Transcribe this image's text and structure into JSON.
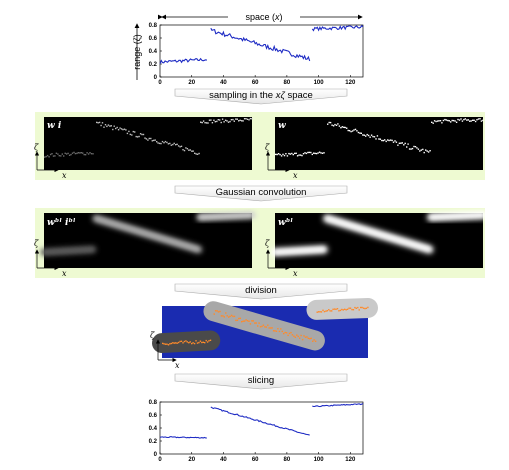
{
  "colors": {
    "panel_bg": "#eefad2",
    "line": "#1f2cc4",
    "division_bg": "#1a2bb0",
    "division_dots": "#ff8a2a"
  },
  "top_axis": {
    "label": "space (",
    "var": "x",
    "close": ")"
  },
  "steps": {
    "sampling": "sampling in the xζ space",
    "convolution": "Gaussian convolution",
    "division": "division",
    "slicing": "slicing"
  },
  "panels": {
    "wi": {
      "label": "w i"
    },
    "w": {
      "label": "w"
    },
    "wbi": {
      "label": "wᵇˡ iᵇˡ"
    },
    "wb": {
      "label": "wᵇˡ"
    }
  },
  "axis_labels": {
    "zeta": "ζ",
    "x": "x"
  },
  "chart_data": [
    {
      "type": "line",
      "ylabel": "range (ζ)",
      "xlim": [
        0,
        128
      ],
      "ylim": [
        0,
        0.8
      ],
      "xticks": [
        0,
        20,
        40,
        60,
        80,
        100,
        120
      ],
      "yticks": [
        0,
        0.2,
        0.4,
        0.6,
        0.8
      ],
      "segments": [
        {
          "x0": 0,
          "x1": 30,
          "y0": 0.23,
          "y1": 0.27,
          "noise": 0.025
        },
        {
          "x0": 32,
          "x1": 95,
          "y0": 0.72,
          "y1": 0.27,
          "noise": 0.035
        },
        {
          "x0": 96,
          "x1": 128,
          "y0": 0.74,
          "y1": 0.77,
          "noise": 0.025
        }
      ]
    },
    {
      "type": "line",
      "xlim": [
        0,
        128
      ],
      "ylim": [
        0,
        0.8
      ],
      "xticks": [
        0,
        20,
        40,
        60,
        80,
        100,
        120
      ],
      "yticks": [
        0,
        0.2,
        0.4,
        0.6,
        0.8
      ],
      "segments": [
        {
          "x0": 0,
          "x1": 30,
          "y0": 0.26,
          "y1": 0.25,
          "noise": 0.008
        },
        {
          "x0": 32,
          "x1": 95,
          "y0": 0.72,
          "y1": 0.28,
          "noise": 0.01
        },
        {
          "x0": 96,
          "x1": 128,
          "y0": 0.73,
          "y1": 0.77,
          "noise": 0.008
        }
      ]
    }
  ]
}
